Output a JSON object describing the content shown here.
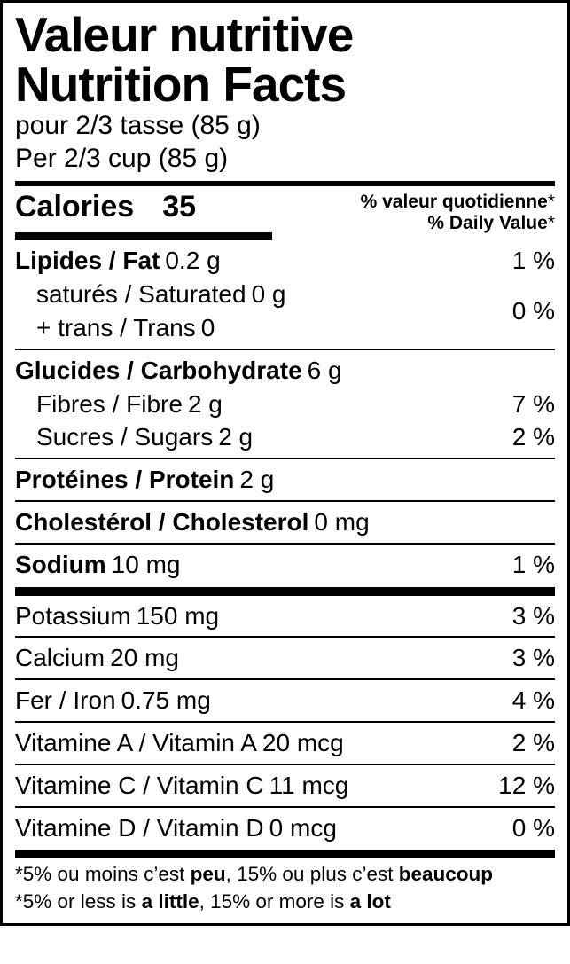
{
  "title_fr": "Valeur nutritive",
  "title_en": "Nutrition Facts",
  "serving_fr": "pour 2/3 tasse (85 g)",
  "serving_en": "Per 2/3 cup (85 g)",
  "calories_label": "Calories",
  "calories_value": "35",
  "dv_fr": "% valeur quotidienne",
  "dv_en": "% Daily Value",
  "dv_ast": "*",
  "fat_label": "Lipides / Fat",
  "fat_amount": "0.2 g",
  "fat_pct": "1 %",
  "sat_label": "saturés / Saturated",
  "sat_amount": "0 g",
  "trans_label": "+ trans / Trans",
  "trans_amount": "0",
  "sat_trans_pct": "0 %",
  "carb_label": "Glucides / Carbohydrate",
  "carb_amount": "6 g",
  "fibre_label": "Fibres / Fibre",
  "fibre_amount": "2 g",
  "fibre_pct": "7 %",
  "sugar_label": "Sucres / Sugars",
  "sugar_amount": "2 g",
  "sugar_pct": "2 %",
  "protein_label": "Protéines / Protein",
  "protein_amount": "2 g",
  "chol_label": "Cholestérol / Cholesterol",
  "chol_amount": "0 mg",
  "sodium_label": "Sodium",
  "sodium_amount": "10 mg",
  "sodium_pct": "1 %",
  "potassium_label": "Potassium",
  "potassium_amount": "150 mg",
  "potassium_pct": "3 %",
  "calcium_label": "Calcium",
  "calcium_amount": "20 mg",
  "calcium_pct": "3 %",
  "iron_label": "Fer / Iron",
  "iron_amount": "0.75 mg",
  "iron_pct": "4 %",
  "vita_label": "Vitamine A / Vitamin A",
  "vita_amount": "20 mcg",
  "vita_pct": "2 %",
  "vitc_label": "Vitamine C / Vitamin C",
  "vitc_amount": "11 mcg",
  "vitc_pct": "12 %",
  "vitd_label": "Vitamine D / Vitamin D",
  "vitd_amount": "0 mcg",
  "vitd_pct": "0 %",
  "foot_fr_a": "5% ou moins c’est ",
  "foot_fr_b": "peu",
  "foot_fr_c": ", 15% ou plus c’est ",
  "foot_fr_d": "beaucoup",
  "foot_en_a": "5% or less is ",
  "foot_en_b": "a little",
  "foot_en_c": ", 15% or more is ",
  "foot_en_d": "a lot",
  "ast": "*"
}
